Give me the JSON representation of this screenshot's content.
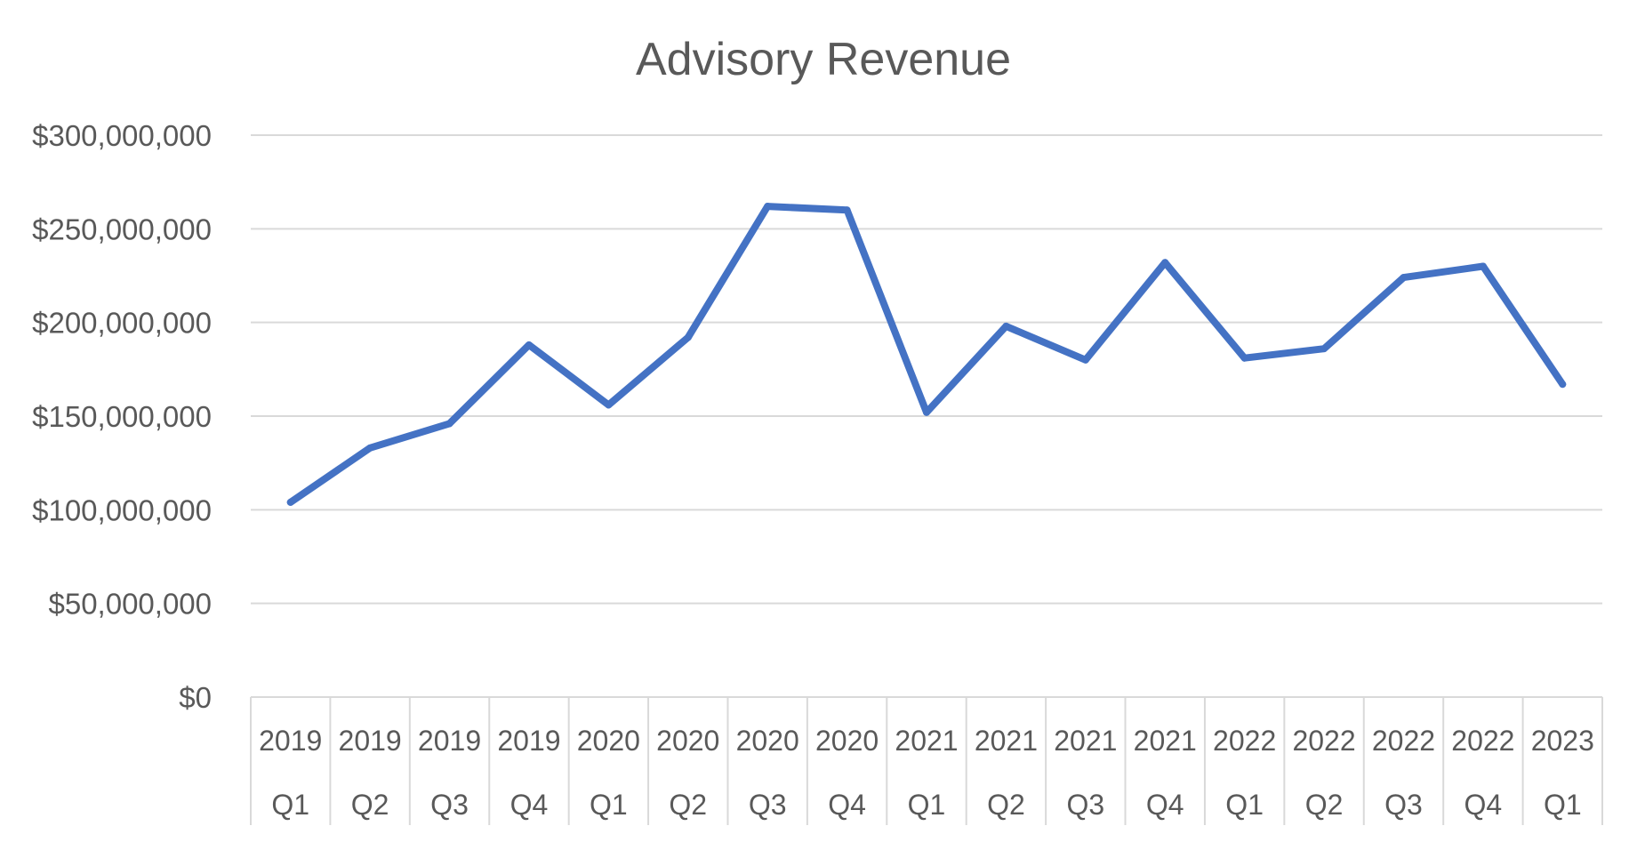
{
  "chart_data": {
    "type": "line",
    "title": "Advisory Revenue",
    "xlabel": "",
    "ylabel": "",
    "ylim": [
      0,
      300000000
    ],
    "y_ticks": [
      0,
      50000000,
      100000000,
      150000000,
      200000000,
      250000000,
      300000000
    ],
    "y_tick_labels": [
      "$0",
      "$50,000,000",
      "$100,000,000",
      "$150,000,000",
      "$200,000,000",
      "$250,000,000",
      "$300,000,000"
    ],
    "categories": [
      {
        "year": "2019",
        "quarter": "Q1"
      },
      {
        "year": "2019",
        "quarter": "Q2"
      },
      {
        "year": "2019",
        "quarter": "Q3"
      },
      {
        "year": "2019",
        "quarter": "Q4"
      },
      {
        "year": "2020",
        "quarter": "Q1"
      },
      {
        "year": "2020",
        "quarter": "Q2"
      },
      {
        "year": "2020",
        "quarter": "Q3"
      },
      {
        "year": "2020",
        "quarter": "Q4"
      },
      {
        "year": "2021",
        "quarter": "Q1"
      },
      {
        "year": "2021",
        "quarter": "Q2"
      },
      {
        "year": "2021",
        "quarter": "Q3"
      },
      {
        "year": "2021",
        "quarter": "Q4"
      },
      {
        "year": "2022",
        "quarter": "Q1"
      },
      {
        "year": "2022",
        "quarter": "Q2"
      },
      {
        "year": "2022",
        "quarter": "Q3"
      },
      {
        "year": "2022",
        "quarter": "Q4"
      },
      {
        "year": "2023",
        "quarter": "Q1"
      }
    ],
    "series": [
      {
        "name": "Advisory Revenue",
        "color": "#4472C4",
        "values": [
          104000000,
          133000000,
          146000000,
          188000000,
          156000000,
          192000000,
          262000000,
          260000000,
          152000000,
          198000000,
          180000000,
          232000000,
          181000000,
          186000000,
          224000000,
          230000000,
          167000000
        ]
      }
    ],
    "grid": true,
    "legend": "none"
  }
}
